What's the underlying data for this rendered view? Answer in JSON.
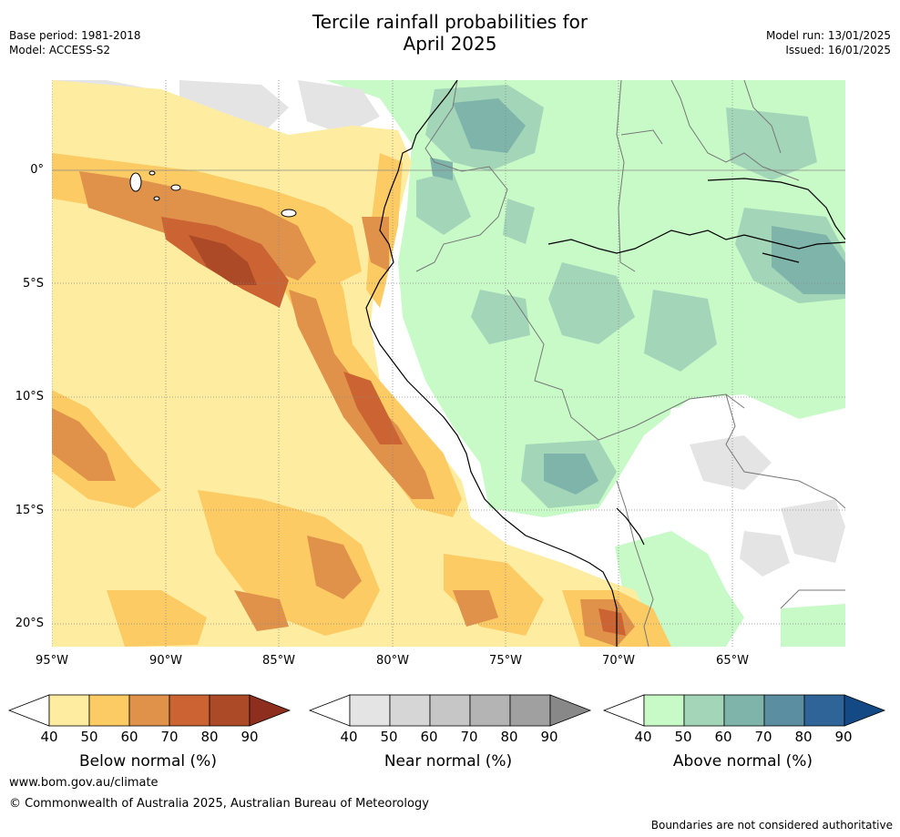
{
  "title_line1": "Tercile rainfall probabilities for",
  "title_line2": "April 2025",
  "meta_left": {
    "base_period": "Base period: 1981-2018",
    "model": "Model: ACCESS-S2"
  },
  "meta_right": {
    "model_run": "Model run: 13/01/2025",
    "issued": "Issued: 16/01/2025"
  },
  "lat_labels": [
    "0°",
    "5°S",
    "10°S",
    "15°S",
    "20°S"
  ],
  "lon_labels": [
    "95°W",
    "90°W",
    "85°W",
    "80°W",
    "75°W",
    "70°W",
    "65°W"
  ],
  "colorbars": [
    {
      "title": "Below normal (%)",
      "ticks": [
        "40",
        "50",
        "60",
        "70",
        "80",
        "90"
      ],
      "colors": [
        "#ffffff",
        "#feeda0",
        "#fdcb64",
        "#e0914a",
        "#cb6432",
        "#ac4a28",
        "#8e2e1f"
      ]
    },
    {
      "title": "Near normal (%)",
      "ticks": [
        "40",
        "50",
        "60",
        "70",
        "80",
        "90"
      ],
      "colors": [
        "#ffffff",
        "#e4e4e4",
        "#d6d6d6",
        "#c6c6c6",
        "#b4b4b4",
        "#a0a0a0",
        "#888888"
      ]
    },
    {
      "title": "Above normal (%)",
      "ticks": [
        "40",
        "50",
        "60",
        "70",
        "80",
        "90"
      ],
      "colors": [
        "#ffffff",
        "#c8fac8",
        "#a3d5b8",
        "#7fb4aa",
        "#5a8ea0",
        "#2f6499",
        "#134a85"
      ]
    }
  ],
  "footer": {
    "url": "www.bom.gov.au/climate",
    "copyright": "© Commonwealth of Australia 2025, Australian Bureau of Meteorology",
    "note": "Boundaries are not considered authoritative"
  }
}
